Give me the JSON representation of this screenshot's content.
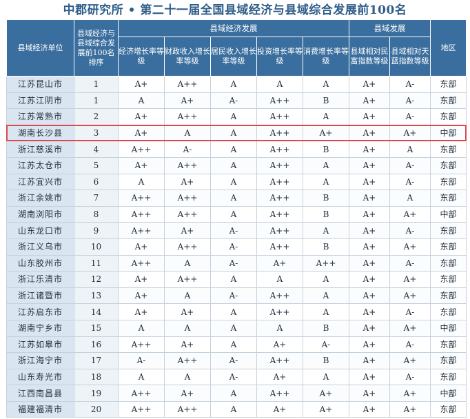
{
  "title": "中郡研究所 • 第二十一届全国县域经济与县域综合发展前100名",
  "headers": {
    "unit": "县域经济单位",
    "rank": "县域经济与县域综合发展前100名排序",
    "group_economy": "县域经济发展",
    "group_development": "县域发展",
    "economy_growth": "经济增长率等级",
    "fiscal_growth": "财政收入增长率等级",
    "resident_growth": "居民收入增长率等级",
    "investment_growth": "投资增长率等级",
    "consumption_growth": "消费增长率等级",
    "wealth_index": "县域相对民富指数等级",
    "sky_index": "县域相对天蓝指数等级",
    "region": "地区"
  },
  "rows": [
    [
      "江苏昆山市",
      "1",
      "A+",
      "A++",
      "A",
      "A",
      "A",
      "A+",
      "A-",
      "东部"
    ],
    [
      "江苏江阴市",
      "1",
      "A",
      "A+",
      "A-",
      "A++",
      "B",
      "A+",
      "A-",
      "东部"
    ],
    [
      "江苏常熟市",
      "2",
      "A+",
      "A++",
      "A",
      "A++",
      "A",
      "A+",
      "A-",
      "东部"
    ],
    [
      "湖南长沙县",
      "3",
      "A+",
      "A",
      "A",
      "A++",
      "A+",
      "A+",
      "A+",
      "中部"
    ],
    [
      "浙江慈溪市",
      "4",
      "A++",
      "A-",
      "A",
      "A++",
      "B",
      "A+",
      "A",
      "东部"
    ],
    [
      "江苏太仓市",
      "5",
      "A+",
      "A++",
      "A",
      "A++",
      "A",
      "A+",
      "A-",
      "东部"
    ],
    [
      "江苏宜兴市",
      "6",
      "A",
      "A+",
      "A",
      "A++",
      "A",
      "A+",
      "A-",
      "东部"
    ],
    [
      "浙江余姚市",
      "7",
      "A++",
      "A++",
      "A",
      "A++",
      "B",
      "A+",
      "A",
      "东部"
    ],
    [
      "湖南浏阳市",
      "8",
      "A++",
      "A++",
      "A",
      "A++",
      "B",
      "A+",
      "A+",
      "中部"
    ],
    [
      "山东龙口市",
      "9",
      "A++",
      "A+",
      "A-",
      "A++",
      "A",
      "A+",
      "A-",
      "东部"
    ],
    [
      "浙江义乌市",
      "10",
      "A+",
      "A++",
      "A-",
      "A++",
      "B",
      "A+",
      "A+",
      "东部"
    ],
    [
      "山东胶州市",
      "11",
      "A++",
      "A",
      "A-",
      "A+",
      "A++",
      "A+",
      "A-",
      "东部"
    ],
    [
      "浙江乐清市",
      "12",
      "A+",
      "A++",
      "A",
      "A",
      "A",
      "A+",
      "A+",
      "东部"
    ],
    [
      "浙江诸暨市",
      "13",
      "A+",
      "A",
      "A-",
      "A++",
      "A",
      "A+",
      "A+",
      "东部"
    ],
    [
      "江苏启东市",
      "14",
      "A+",
      "A+",
      "A",
      "A++",
      "A",
      "A+",
      "A-",
      "东部"
    ],
    [
      "湖南宁乡市",
      "15",
      "A",
      "A",
      "A",
      "A",
      "B",
      "A+",
      "A+",
      "中部"
    ],
    [
      "江苏如皋市",
      "16",
      "A++",
      "A+",
      "A",
      "A+",
      "A-",
      "A+",
      "A-",
      "东部"
    ],
    [
      "浙江海宁市",
      "17",
      "A-",
      "A++",
      "A-",
      "A++",
      "B",
      "A+",
      "A+",
      "东部"
    ],
    [
      "山东寿光市",
      "18",
      "A",
      "A",
      "A-",
      "A+",
      "A",
      "A+",
      "A-",
      "东部"
    ],
    [
      "江西南昌县",
      "19",
      "A++",
      "A+",
      "A",
      "A++",
      "A+",
      "A+",
      "A+",
      "中部"
    ],
    [
      "福建福清市",
      "20",
      "A++",
      "A++",
      "A",
      "A+",
      "A+",
      "A+",
      "A+",
      "东部"
    ]
  ],
  "colors": {
    "header": "#3a6e9e",
    "highlight_border": "#e0474c"
  }
}
